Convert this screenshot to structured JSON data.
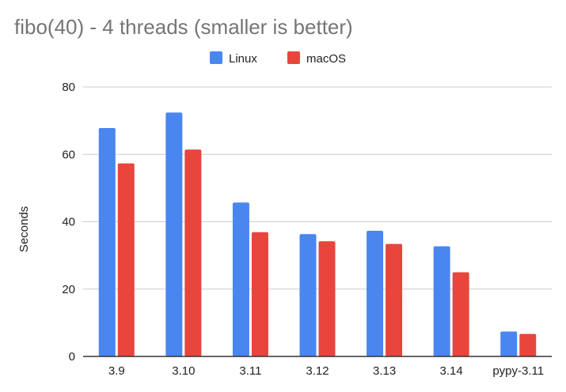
{
  "chart_data": {
    "type": "bar",
    "title": "fibo(40) - 4 threads (smaller is better)",
    "xlabel": "",
    "ylabel": "Seconds",
    "categories": [
      "3.9",
      "3.10",
      "3.11",
      "3.12",
      "3.13",
      "3.14",
      "pypy-3.11"
    ],
    "series": [
      {
        "name": "Linux",
        "color": "#4a86f0",
        "values": [
          67.8,
          72.4,
          45.7,
          36.3,
          37.3,
          32.7,
          7.4
        ]
      },
      {
        "name": "macOS",
        "color": "#e8453c",
        "values": [
          57.3,
          61.4,
          36.9,
          34.2,
          33.4,
          25.0,
          6.7
        ]
      }
    ],
    "ylim": [
      0,
      80
    ],
    "yticks": [
      0,
      20,
      40,
      60,
      80
    ],
    "grid": true,
    "legend": "top-center"
  }
}
